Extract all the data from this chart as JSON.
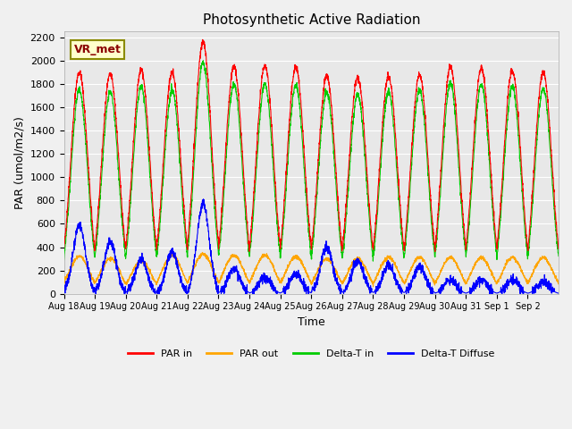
{
  "title": "Photosynthetic Active Radiation",
  "ylabel": "PAR (umol/m2/s)",
  "xlabel": "Time",
  "annotation": "VR_met",
  "ylim": [
    0,
    2250
  ],
  "yticks": [
    0,
    200,
    400,
    600,
    800,
    1000,
    1200,
    1400,
    1600,
    1800,
    2000,
    2200
  ],
  "x_labels": [
    "Aug 18",
    "Aug 19",
    "Aug 20",
    "Aug 21",
    "Aug 22",
    "Aug 23",
    "Aug 24",
    "Aug 25",
    "Aug 26",
    "Aug 27",
    "Aug 28",
    "Aug 29",
    "Aug 30",
    "Aug 31",
    "Sep 1",
    "Sep 2"
  ],
  "colors": {
    "PAR_in": "#ff0000",
    "PAR_out": "#ffa500",
    "Delta_T_in": "#00cc00",
    "Delta_T_Diffuse": "#0000ff"
  },
  "legend": [
    "PAR in",
    "PAR out",
    "Delta-T in",
    "Delta-T Diffuse"
  ],
  "background_color": "#e8e8e8",
  "n_days": 16,
  "peak_PAR_in": [
    1900,
    1880,
    1920,
    1900,
    2160,
    1950,
    1960,
    1950,
    1870,
    1860,
    1870,
    1880,
    1950,
    1940,
    1920,
    1900
  ],
  "peak_PAR_out": [
    320,
    300,
    280,
    330,
    340,
    330,
    330,
    320,
    300,
    300,
    310,
    310,
    310,
    310,
    310,
    310
  ],
  "peak_Delta_T_in": [
    1750,
    1730,
    1780,
    1750,
    1980,
    1800,
    1800,
    1790,
    1730,
    1710,
    1730,
    1750,
    1810,
    1800,
    1780,
    1760
  ],
  "peak_Delta_T_Diffuse": [
    590,
    440,
    290,
    360,
    780,
    210,
    140,
    170,
    400,
    280,
    240,
    230,
    120,
    120,
    120,
    100
  ]
}
